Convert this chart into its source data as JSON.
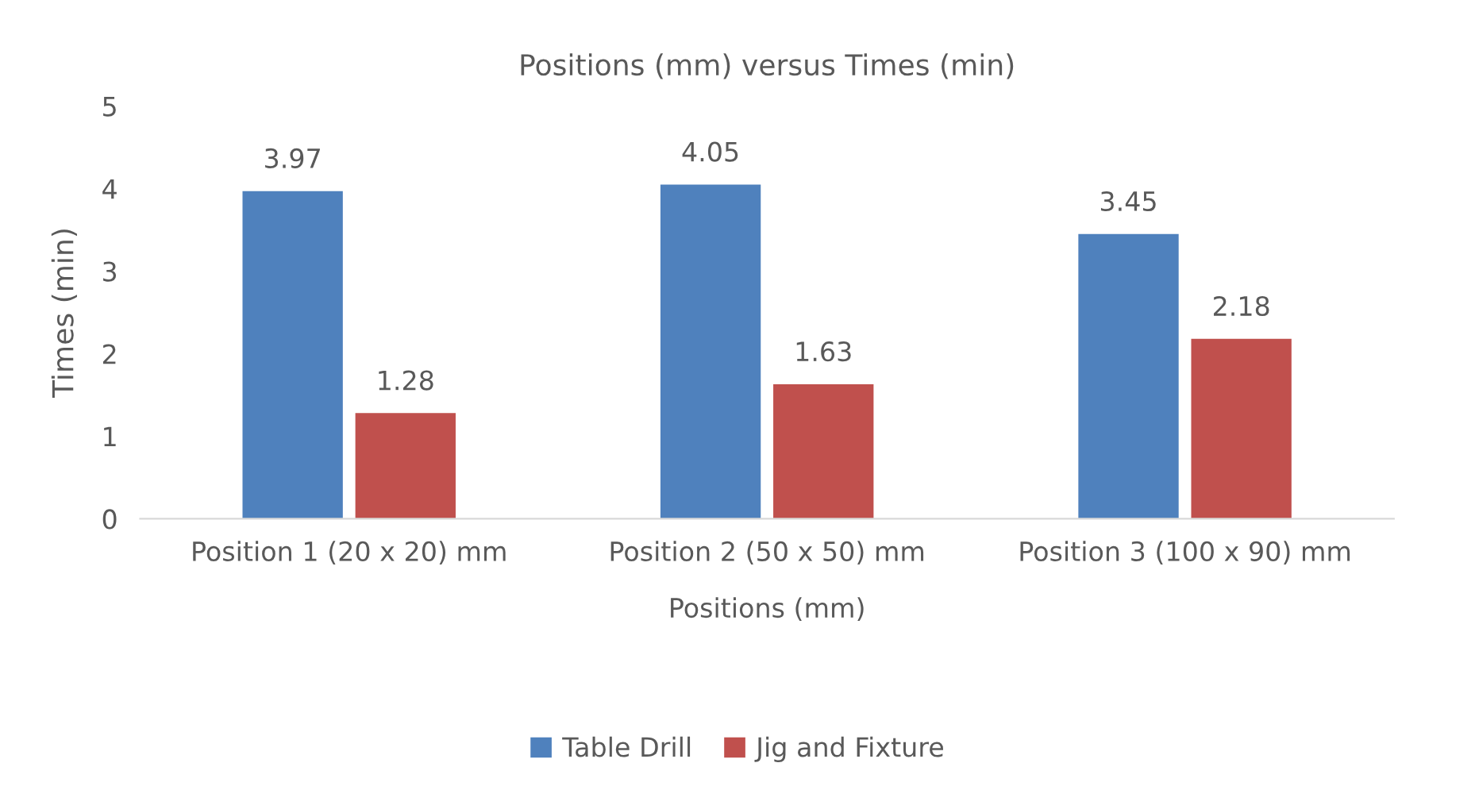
{
  "chart_data": {
    "type": "bar",
    "title": "Positions (mm) versus Times (min)",
    "xlabel": "Positions (mm)",
    "ylabel": "Times (min)",
    "categories": [
      "Position 1 (20 x 20) mm",
      "Position 2 (50 x 50) mm",
      "Position 3 (100 x 90) mm"
    ],
    "series": [
      {
        "name": "Table Drill",
        "color": "#4f81bd",
        "values": [
          3.97,
          4.05,
          3.45
        ]
      },
      {
        "name": "Jig and Fixture",
        "color": "#c0504d",
        "values": [
          1.28,
          1.63,
          2.18
        ]
      }
    ],
    "ylim": [
      0,
      5
    ],
    "yticks": [
      0,
      1,
      2,
      3,
      4,
      5
    ],
    "grid": false,
    "legend": "bottom",
    "data_labels": true
  }
}
